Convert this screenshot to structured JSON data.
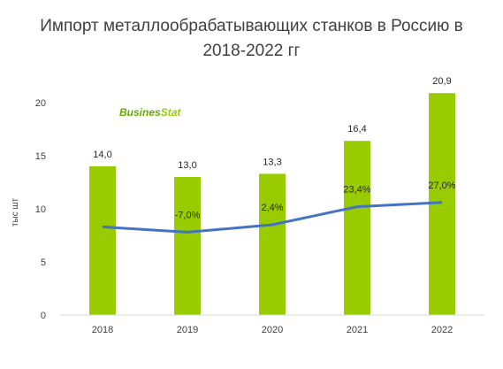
{
  "chart_data": {
    "type": "bar",
    "title_line1": "Импорт металлообрабатывающих станков в Россию в",
    "title_line2": "2018-2022 гг",
    "ylabel": "тыс шт",
    "categories": [
      "2018",
      "2019",
      "2020",
      "2021",
      "2022"
    ],
    "values": [
      14.0,
      13.0,
      13.3,
      16.4,
      20.9
    ],
    "value_labels": [
      "14,0",
      "13,0",
      "13,3",
      "16,4",
      "20,9"
    ],
    "growth_series": {
      "type": "line",
      "values": [
        8.3,
        7.8,
        8.5,
        10.2,
        10.6
      ],
      "labels": [
        "",
        "-7,0%",
        "2,4%",
        "23,4%",
        "27,0%"
      ]
    },
    "ylim": [
      0,
      25
    ],
    "yticks": [
      0,
      5,
      10,
      15,
      20
    ],
    "grid": false,
    "colors": {
      "bar": "#99cc00",
      "line": "#4472c4",
      "axis": "#d9d9d9"
    }
  },
  "logo": {
    "text_main": "Busines",
    "text_accent": "Stat",
    "color_main": "#66aa00",
    "color_accent": "#99cc00"
  }
}
